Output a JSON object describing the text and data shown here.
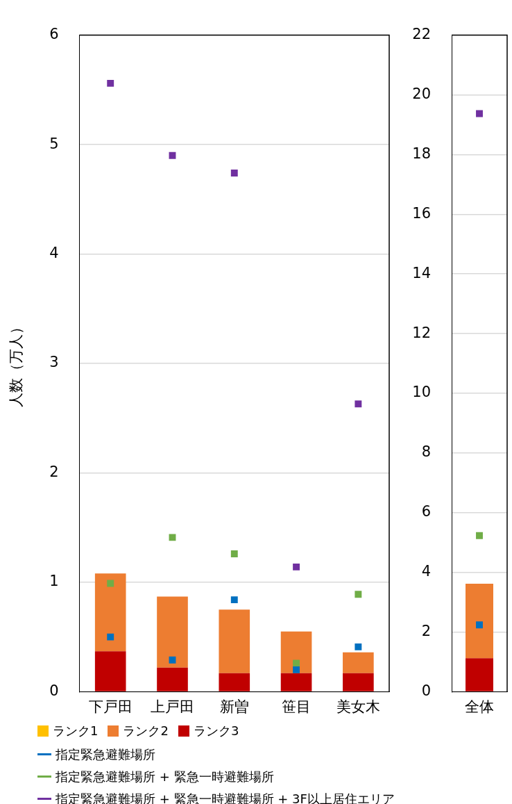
{
  "chart_data": [
    {
      "type": "bar",
      "stacked": true,
      "ylabel": "人数（万人）",
      "categories": [
        "下戸田",
        "上戸田",
        "新曽",
        "笹目",
        "美女木"
      ],
      "ylim": [
        0,
        6
      ],
      "yticks": [
        0,
        1,
        2,
        3,
        4,
        5,
        6
      ],
      "grid": "y",
      "legend": "bottom",
      "series": [
        {
          "name": "ランク3",
          "color": "#c00000",
          "values": [
            0.37,
            0.22,
            0.17,
            0.17,
            0.17
          ]
        },
        {
          "name": "ランク2",
          "color": "#ed7d31",
          "values": [
            0.71,
            0.65,
            0.58,
            0.38,
            0.19
          ]
        },
        {
          "name": "ランク1",
          "color": "#ffc000",
          "values": [
            0,
            0,
            0,
            0,
            0
          ]
        },
        {
          "name": "指定緊急避難場所",
          "type": "scatter",
          "marker": "square",
          "color": "#0070c0",
          "values": [
            0.5,
            0.29,
            0.84,
            0.2,
            0.41
          ]
        },
        {
          "name": "指定緊急避難場所 + 緊急一時避難場所",
          "type": "scatter",
          "marker": "square",
          "color": "#70ad47",
          "values": [
            0.99,
            1.41,
            1.26,
            0.26,
            0.89
          ]
        },
        {
          "name": "指定緊急避難場所 + 緊急一時避難場所 + 3F以上居住エリア",
          "type": "scatter",
          "marker": "square",
          "color": "#7030a0",
          "values": [
            5.56,
            4.9,
            4.74,
            1.14,
            2.63
          ]
        }
      ]
    },
    {
      "type": "bar",
      "stacked": true,
      "categories": [
        "全体"
      ],
      "ylim": [
        0,
        22
      ],
      "yticks": [
        0,
        2,
        4,
        6,
        8,
        10,
        12,
        14,
        16,
        18,
        20,
        22
      ],
      "grid": "y",
      "series": [
        {
          "color": "#c00000",
          "values": [
            1.12
          ]
        },
        {
          "color": "#ed7d31",
          "values": [
            2.5
          ]
        },
        {
          "color": "#ffc000",
          "values": [
            0
          ]
        },
        {
          "type": "scatter",
          "marker": "square",
          "color": "#0070c0",
          "values": [
            2.24
          ]
        },
        {
          "type": "scatter",
          "marker": "square",
          "color": "#70ad47",
          "values": [
            5.23
          ]
        },
        {
          "type": "scatter",
          "marker": "square",
          "color": "#7030a0",
          "values": [
            19.37
          ]
        }
      ]
    }
  ]
}
